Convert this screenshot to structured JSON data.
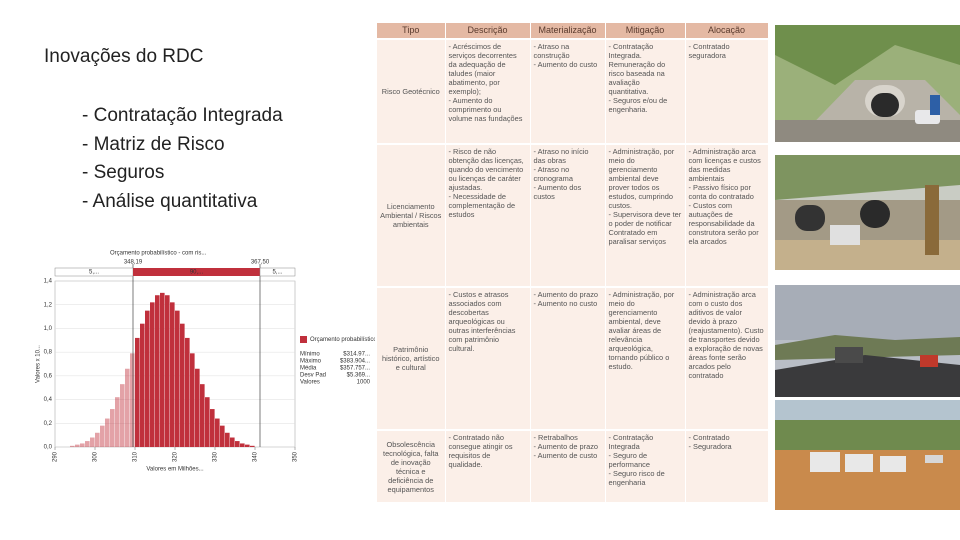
{
  "slide": {
    "title": "Inovações do RDC",
    "bullets": [
      "- Contratação Integrada",
      "- Matriz de Risco",
      "-  Seguros",
      "- Análise quantitativa"
    ]
  },
  "table": {
    "headers": [
      "Tipo",
      "Descrição",
      "Materialização",
      "Mitigação",
      "Alocação"
    ],
    "rows": [
      [
        [
          "Risco Geotécnico"
        ],
        [
          "- Acréscimos de serviços decorrentes da adequação de taludes (maior abatimento, por exemplo);",
          "- Aumento do comprimento ou volume nas fundações"
        ],
        [
          "- Atraso na construção",
          "- Aumento do custo"
        ],
        [
          "- Contratação Integrada. Remuneração do risco baseada na avaliação quantitativa.",
          "- Seguros e/ou de engenharia."
        ],
        [
          "- Contratado seguradora"
        ]
      ],
      [
        [
          "Licenciamento Ambiental / Riscos ambientais"
        ],
        [
          "- Risco de não obtenção das licenças, quando do vencimento ou licenças de caráter ajustadas.",
          "- Necessidade de complementação de estudos"
        ],
        [
          "- Atraso no início das obras",
          "- Atraso no cronograma",
          "- Aumento dos custos"
        ],
        [
          "- Administração, por meio do gerenciamento ambiental deve prover todos os estudos, cumprindo custos.",
          "- Supervisora deve ter o poder de notificar Contratado em paralisar serviços"
        ],
        [
          "- Administração arca com licenças e custos das medidas ambientais",
          "- Passivo físico por conta do contratado",
          "- Custos com autuações de responsabilidade da construtora serão por ela arcados"
        ]
      ],
      [
        [
          "Patrimônio histórico, artístico e cultural"
        ],
        [
          "- Custos e atrasos associados com descobertas arqueológicas ou outras interferências com patrimônio cultural."
        ],
        [
          "- Aumento do prazo",
          "- Aumento no custo"
        ],
        [
          "- Administração, por meio do gerenciamento ambiental, deve avaliar áreas de relevância arqueológica, tornando público o estudo."
        ],
        [
          "- Administração arca com o custo dos aditivos de valor devido à prazo (reajustamento). Custo de transportes devido a exploração de novas áreas fonte serão arcados pelo contratado"
        ]
      ],
      [
        [
          "Obsolescência tecnológica, falta de inovação técnica e deficiência de equipamentos"
        ],
        [
          "- Contratado não consegue atingir os requisitos de qualidade."
        ],
        [
          "- Retrabalhos",
          "- Aumento de prazo",
          "- Aumento de custo"
        ],
        [
          "- Contratação Integrada",
          "- Seguro de performance",
          "- Seguro risco de engenharia"
        ],
        [
          "- Contratado",
          "- Seguradora"
        ]
      ]
    ]
  },
  "chart_data": {
    "type": "histogram",
    "title": "Orçamento probabilístico - com ris...",
    "y_label": "Valores x 10...",
    "x_label": "Valores em Milhões...",
    "markers": [
      "348,19",
      "367,50"
    ],
    "band_labels": [
      "5,...",
      "90,...",
      "5,..."
    ],
    "values": [
      0.01,
      0.02,
      0.03,
      0.05,
      0.08,
      0.12,
      0.18,
      0.24,
      0.32,
      0.42,
      0.53,
      0.66,
      0.79,
      0.92,
      1.04,
      1.15,
      1.22,
      1.28,
      1.3,
      1.28,
      1.22,
      1.15,
      1.04,
      0.92,
      0.79,
      0.66,
      0.53,
      0.42,
      0.32,
      0.24,
      0.18,
      0.12,
      0.08,
      0.05,
      0.03,
      0.02,
      0.01
    ],
    "color": "#c0303c",
    "ylim": [
      0,
      1.4
    ],
    "yticks": [
      {
        "value": 0,
        "label": "0,0"
      },
      {
        "value": 0.2,
        "label": "0,2"
      },
      {
        "value": 0.4,
        "label": "0,4"
      },
      {
        "value": 0.6,
        "label": "0,6"
      },
      {
        "value": 0.8,
        "label": "0,8"
      },
      {
        "value": 1.0,
        "label": "1,0"
      },
      {
        "value": 1.2,
        "label": "1,2"
      },
      {
        "value": 1.4,
        "label": "1,4"
      }
    ],
    "xlim": [
      290,
      350
    ],
    "xticks": [
      290,
      300,
      310,
      320,
      330,
      340,
      350
    ],
    "legend": {
      "name": "Orçamento probabilístico - com riscos",
      "stats": [
        [
          "Mínimo",
          "$314.97..."
        ],
        [
          "Máximo",
          "$383.904..."
        ],
        [
          "Média",
          "$357.757..."
        ],
        [
          "Desv Pad",
          "$5.369..."
        ],
        [
          "Valores",
          "1000"
        ]
      ]
    }
  }
}
